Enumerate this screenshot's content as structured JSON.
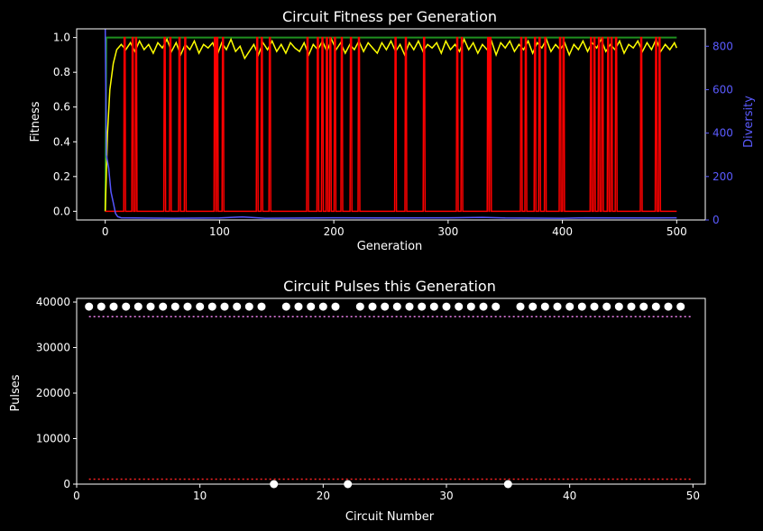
{
  "chart_data": [
    {
      "type": "line",
      "title": "Circuit Fitness per Generation",
      "xlabel": "Generation",
      "ylabel": "Fitness",
      "y2label": "Diversity",
      "xlim": [
        -25,
        525
      ],
      "ylim": [
        -0.05,
        1.05
      ],
      "y2lim": [
        0,
        880
      ],
      "xticks": [
        0,
        100,
        200,
        300,
        400,
        500
      ],
      "yticks": [
        0.0,
        0.2,
        0.4,
        0.6,
        0.8,
        1.0
      ],
      "y2ticks": [
        0,
        200,
        400,
        600,
        800
      ],
      "grid": false,
      "colors": {
        "max": "#1f8f1f",
        "mean": "#ffff00",
        "min": "#ff0000",
        "diversity": "#5555ff",
        "axis": "#ffffff",
        "background": "#000000"
      },
      "series": [
        {
          "key": "max",
          "points": [
            [
              0,
              0.0
            ],
            [
              1,
              1.0
            ],
            [
              500,
              1.0
            ]
          ]
        },
        {
          "key": "mean",
          "points": [
            [
              0,
              0.0
            ],
            [
              2,
              0.45
            ],
            [
              4,
              0.7
            ],
            [
              7,
              0.85
            ],
            [
              10,
              0.93
            ],
            [
              14,
              0.96
            ],
            [
              18,
              0.93
            ],
            [
              22,
              0.97
            ],
            [
              26,
              0.92
            ],
            [
              30,
              0.98
            ],
            [
              34,
              0.93
            ],
            [
              38,
              0.96
            ],
            [
              42,
              0.91
            ],
            [
              46,
              0.97
            ],
            [
              50,
              0.94
            ],
            [
              54,
              0.99
            ],
            [
              58,
              0.92
            ],
            [
              62,
              0.97
            ],
            [
              66,
              0.9
            ],
            [
              70,
              0.96
            ],
            [
              74,
              0.93
            ],
            [
              78,
              0.98
            ],
            [
              82,
              0.91
            ],
            [
              86,
              0.96
            ],
            [
              90,
              0.94
            ],
            [
              94,
              0.97
            ],
            [
              98,
              0.9
            ],
            [
              102,
              0.97
            ],
            [
              106,
              0.93
            ],
            [
              110,
              0.99
            ],
            [
              114,
              0.92
            ],
            [
              118,
              0.95
            ],
            [
              122,
              0.88
            ],
            [
              126,
              0.92
            ],
            [
              130,
              0.96
            ],
            [
              134,
              0.9
            ],
            [
              138,
              0.97
            ],
            [
              142,
              0.93
            ],
            [
              146,
              0.98
            ],
            [
              150,
              0.92
            ],
            [
              154,
              0.96
            ],
            [
              158,
              0.91
            ],
            [
              162,
              0.97
            ],
            [
              166,
              0.94
            ],
            [
              170,
              0.92
            ],
            [
              174,
              0.97
            ],
            [
              178,
              0.9
            ],
            [
              182,
              0.96
            ],
            [
              186,
              0.93
            ],
            [
              190,
              0.98
            ],
            [
              194,
              0.92
            ],
            [
              198,
              0.99
            ],
            [
              202,
              0.93
            ],
            [
              206,
              0.97
            ],
            [
              210,
              0.91
            ],
            [
              214,
              0.96
            ],
            [
              218,
              0.93
            ],
            [
              222,
              0.98
            ],
            [
              226,
              0.92
            ],
            [
              230,
              0.97
            ],
            [
              234,
              0.94
            ],
            [
              238,
              0.91
            ],
            [
              242,
              0.97
            ],
            [
              246,
              0.93
            ],
            [
              250,
              0.98
            ],
            [
              254,
              0.92
            ],
            [
              258,
              0.96
            ],
            [
              262,
              0.9
            ],
            [
              266,
              0.97
            ],
            [
              270,
              0.93
            ],
            [
              274,
              0.98
            ],
            [
              278,
              0.92
            ],
            [
              282,
              0.96
            ],
            [
              286,
              0.94
            ],
            [
              290,
              0.97
            ],
            [
              294,
              0.91
            ],
            [
              298,
              0.98
            ],
            [
              302,
              0.93
            ],
            [
              306,
              0.96
            ],
            [
              310,
              0.92
            ],
            [
              314,
              0.99
            ],
            [
              318,
              0.93
            ],
            [
              322,
              0.97
            ],
            [
              326,
              0.91
            ],
            [
              330,
              0.96
            ],
            [
              334,
              0.93
            ],
            [
              338,
              0.98
            ],
            [
              342,
              0.9
            ],
            [
              346,
              0.97
            ],
            [
              350,
              0.94
            ],
            [
              354,
              0.98
            ],
            [
              358,
              0.92
            ],
            [
              362,
              0.96
            ],
            [
              366,
              0.93
            ],
            [
              370,
              0.98
            ],
            [
              374,
              0.91
            ],
            [
              378,
              0.97
            ],
            [
              382,
              0.94
            ],
            [
              386,
              0.99
            ],
            [
              390,
              0.92
            ],
            [
              394,
              0.96
            ],
            [
              398,
              0.93
            ],
            [
              402,
              0.97
            ],
            [
              406,
              0.9
            ],
            [
              410,
              0.96
            ],
            [
              414,
              0.93
            ],
            [
              418,
              0.98
            ],
            [
              422,
              0.92
            ],
            [
              426,
              0.97
            ],
            [
              430,
              0.94
            ],
            [
              434,
              0.99
            ],
            [
              438,
              0.92
            ],
            [
              442,
              0.96
            ],
            [
              446,
              0.93
            ],
            [
              450,
              0.98
            ],
            [
              454,
              0.91
            ],
            [
              458,
              0.96
            ],
            [
              462,
              0.94
            ],
            [
              466,
              0.98
            ],
            [
              470,
              0.92
            ],
            [
              474,
              0.97
            ],
            [
              478,
              0.93
            ],
            [
              482,
              0.99
            ],
            [
              486,
              0.92
            ],
            [
              490,
              0.96
            ],
            [
              494,
              0.93
            ],
            [
              498,
              0.97
            ],
            [
              500,
              0.94
            ]
          ]
        },
        {
          "key": "min",
          "spikes": [
            17,
            24,
            27,
            52,
            57,
            65,
            70,
            96,
            98,
            103,
            133,
            137,
            144,
            177,
            186,
            190,
            194,
            197,
            201,
            207,
            215,
            222,
            254,
            263,
            279,
            308,
            312,
            335,
            337,
            364,
            368,
            376,
            380,
            385,
            398,
            401,
            425,
            428,
            432,
            435,
            440,
            443,
            447,
            469,
            482,
            485
          ],
          "low": 0.0,
          "high": 1.0,
          "x_end": 500
        },
        {
          "key": "diversity",
          "axis": "right",
          "points": [
            [
              0,
              880
            ],
            [
              1,
              300
            ],
            [
              3,
              240
            ],
            [
              5,
              130
            ],
            [
              7,
              80
            ],
            [
              9,
              30
            ],
            [
              11,
              15
            ],
            [
              14,
              10
            ],
            [
              60,
              8
            ],
            [
              100,
              9
            ],
            [
              120,
              14
            ],
            [
              140,
              8
            ],
            [
              200,
              10
            ],
            [
              240,
              9
            ],
            [
              300,
              10
            ],
            [
              330,
              12
            ],
            [
              350,
              9
            ],
            [
              400,
              8
            ],
            [
              420,
              10
            ],
            [
              480,
              9
            ],
            [
              500,
              10
            ]
          ]
        }
      ]
    },
    {
      "type": "scatter",
      "title": "Circuit Pulses this Generation",
      "xlabel": "Circuit Number",
      "ylabel": "Pulses",
      "xlim": [
        0,
        51
      ],
      "ylim": [
        0,
        40800
      ],
      "xticks": [
        0,
        10,
        20,
        30,
        40,
        50
      ],
      "yticks": [
        0,
        10000,
        20000,
        30000,
        40000
      ],
      "grid": false,
      "colors": {
        "points": "#ffffff",
        "upper_line": "#ee82ee",
        "lower_line": "#ff2222"
      },
      "upper_threshold": 36800,
      "lower_threshold": 1100,
      "points": [
        [
          1,
          39000
        ],
        [
          2,
          39000
        ],
        [
          3,
          39000
        ],
        [
          4,
          39000
        ],
        [
          5,
          39000
        ],
        [
          6,
          39000
        ],
        [
          7,
          39000
        ],
        [
          8,
          39000
        ],
        [
          9,
          39000
        ],
        [
          10,
          39000
        ],
        [
          11,
          39000
        ],
        [
          12,
          39000
        ],
        [
          13,
          39000
        ],
        [
          14,
          39000
        ],
        [
          15,
          39000
        ],
        [
          16,
          0
        ],
        [
          17,
          39000
        ],
        [
          18,
          39000
        ],
        [
          19,
          39000
        ],
        [
          20,
          39000
        ],
        [
          21,
          39000
        ],
        [
          22,
          0
        ],
        [
          23,
          39000
        ],
        [
          24,
          39000
        ],
        [
          25,
          39000
        ],
        [
          26,
          39000
        ],
        [
          27,
          39000
        ],
        [
          28,
          39000
        ],
        [
          29,
          39000
        ],
        [
          30,
          39000
        ],
        [
          31,
          39000
        ],
        [
          32,
          39000
        ],
        [
          33,
          39000
        ],
        [
          34,
          39000
        ],
        [
          35,
          0
        ],
        [
          36,
          39000
        ],
        [
          37,
          39000
        ],
        [
          38,
          39000
        ],
        [
          39,
          39000
        ],
        [
          40,
          39000
        ],
        [
          41,
          39000
        ],
        [
          42,
          39000
        ],
        [
          43,
          39000
        ],
        [
          44,
          39000
        ],
        [
          45,
          39000
        ],
        [
          46,
          39000
        ],
        [
          47,
          39000
        ],
        [
          48,
          39000
        ],
        [
          49,
          39000
        ]
      ]
    }
  ]
}
